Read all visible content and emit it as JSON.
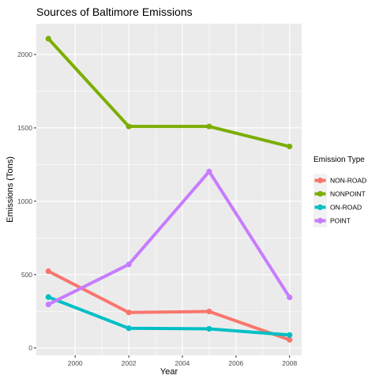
{
  "chart_data": {
    "type": "line",
    "title": "Sources of Baltimore Emissions",
    "xlabel": "Year",
    "ylabel": "Emissions (Tons)",
    "x": [
      1999,
      2002,
      2005,
      2008
    ],
    "xlim": [
      1998.55,
      2008.45
    ],
    "ylim": [
      -50,
      2210
    ],
    "x_ticks": [
      2000,
      2002,
      2004,
      2006,
      2008
    ],
    "x_tick_labels": [
      "2000",
      "2002",
      "2004",
      "2006",
      "2008"
    ],
    "y_ticks": [
      0,
      500,
      1000,
      1500,
      2000
    ],
    "y_tick_labels": [
      "0",
      "500",
      "1000",
      "1500",
      "2000"
    ],
    "grid": true,
    "legend_position": "right",
    "legend_title": "Emission Type",
    "series": [
      {
        "name": "NON-ROAD",
        "color": "#F8766D",
        "values": [
          522.9,
          242.1,
          248.9,
          55.8
        ]
      },
      {
        "name": "NONPOINT",
        "color": "#7CAE00",
        "values": [
          2107.6,
          1509.5,
          1509.5,
          1373.2
        ]
      },
      {
        "name": "ON-ROAD",
        "color": "#00BFC4",
        "values": [
          346.8,
          134.3,
          130.4,
          88.3
        ]
      },
      {
        "name": "POINT",
        "color": "#C77CFF",
        "values": [
          296.8,
          569.3,
          1202.5,
          344.98
        ]
      }
    ]
  }
}
